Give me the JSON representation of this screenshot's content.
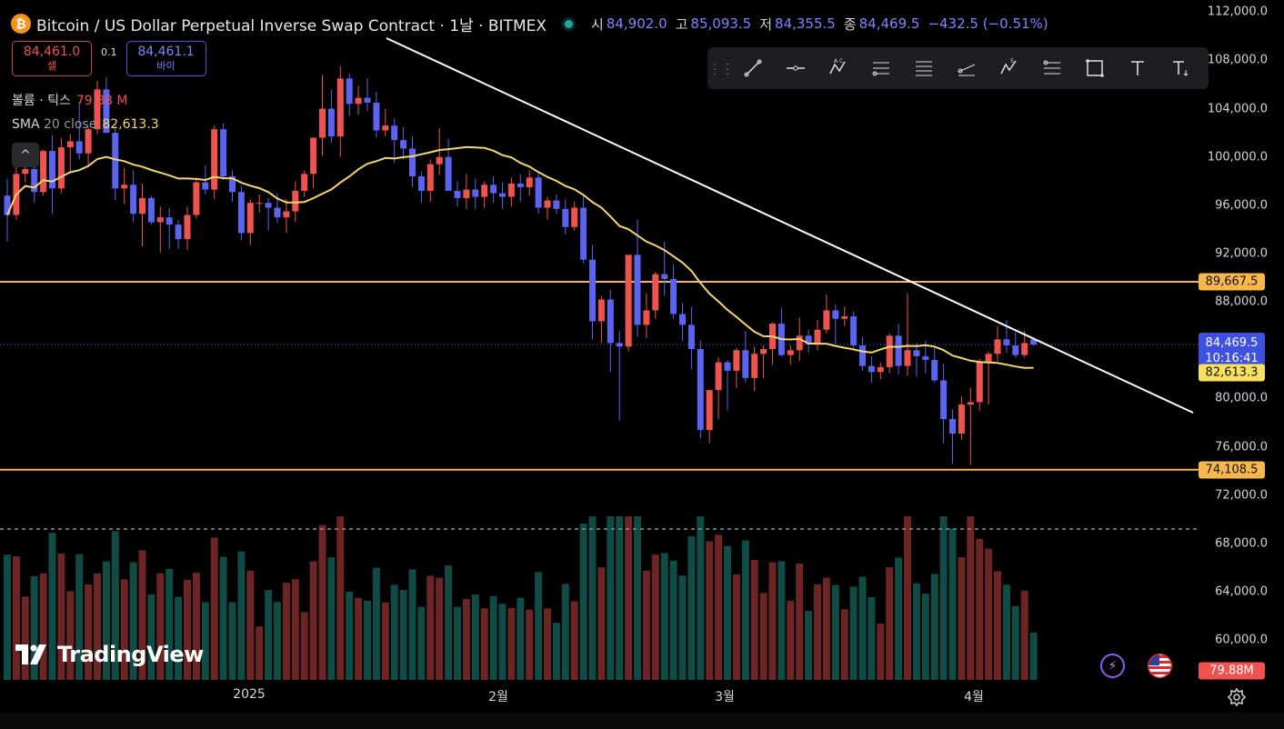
{
  "header": {
    "btc_icon_glyph": "₿",
    "title": "Bitcoin / US Dollar Perpetual Inverse Swap Contract · 1날 · BITMEX",
    "open_label": "시",
    "open": "84,902.0",
    "high_label": "고",
    "high": "85,093.5",
    "low_label": "저",
    "low": "84,355.5",
    "close_label": "종",
    "close": "84,469.5",
    "change": "−432.5 (−0.51%)"
  },
  "trade": {
    "sell_price": "84,461.0",
    "sell_label": "셀",
    "spread": "0.1",
    "buy_price": "84,461.1",
    "buy_label": "바이"
  },
  "legends": {
    "volume_label": "볼륨 · 틱스",
    "volume_value": "79.88 M",
    "sma_name": "SMA",
    "sma_params": "20 close",
    "sma_value": "82,613.3",
    "collapse_glyph": "^"
  },
  "price_axis": {
    "ticks": [
      "112,000.0",
      "108,000.0",
      "104,000.0",
      "100,000.0",
      "96,000.0",
      "92,000.0",
      "88,000.0",
      "80,000.0",
      "76,000.0",
      "72,000.0",
      "68,000.0",
      "64,000.0",
      "60,000.0"
    ],
    "tick_values": [
      112000,
      108000,
      104000,
      100000,
      96000,
      92000,
      88000,
      80000,
      76000,
      72000,
      68000,
      64000,
      60000
    ],
    "level_high": "89,667.5",
    "level_low": "74,108.5",
    "last_price": "84,469.5",
    "countdown": "10:16:41",
    "sma_tag": "82,613.3",
    "volume_tag": "79.88M"
  },
  "time_axis": {
    "labels": [
      "2025",
      "2월",
      "3월",
      "4월"
    ]
  },
  "watermark": {
    "brand": "TradingView"
  },
  "toolbar": {
    "tools": [
      "trend-line-icon",
      "horizontal-ray-icon",
      "abcd-pattern-icon",
      "fib-retracement-icon",
      "parallel-channel-icon",
      "regression-trend-icon",
      "elliott-wave-icon",
      "fib-extension-icon",
      "rectangle-icon",
      "text-icon",
      "anchored-text-icon"
    ]
  },
  "colors": {
    "bull": "#ef5350",
    "bear": "#5b63f0",
    "sma": "#f5d66d",
    "level": "#f7b74a",
    "trendline": "#ffffff"
  },
  "chart_data": {
    "type": "candlestick",
    "y_range": [
      56700,
      113000
    ],
    "levels": [
      89667.5,
      74108.5
    ],
    "last_price": 84469.5,
    "sma_period": 20,
    "candles_ohlc_approx": [
      [
        96800,
        98200,
        93000,
        95200
      ],
      [
        95200,
        99200,
        94800,
        98600
      ],
      [
        98600,
        100800,
        97900,
        99000
      ],
      [
        99000,
        99500,
        96200,
        97100
      ],
      [
        97100,
        100600,
        96800,
        100500
      ],
      [
        100500,
        101800,
        95300,
        97400
      ],
      [
        97400,
        101600,
        97000,
        100800
      ],
      [
        100800,
        101900,
        98700,
        101300
      ],
      [
        101300,
        104300,
        99800,
        100300
      ],
      [
        100300,
        102500,
        99200,
        102300
      ],
      [
        102300,
        106300,
        101900,
        105600
      ],
      [
        105600,
        106600,
        102100,
        102000
      ],
      [
        102000,
        102800,
        96400,
        97400
      ],
      [
        97400,
        99100,
        96100,
        97700
      ],
      [
        97700,
        98900,
        94600,
        95300
      ],
      [
        95300,
        97800,
        92600,
        96600
      ],
      [
        96600,
        96800,
        94400,
        94600
      ],
      [
        94600,
        95900,
        92100,
        95000
      ],
      [
        95000,
        95800,
        92400,
        94400
      ],
      [
        94400,
        94800,
        92400,
        93200
      ],
      [
        93200,
        95900,
        92300,
        95200
      ],
      [
        95200,
        98300,
        94900,
        97900
      ],
      [
        97900,
        99300,
        96900,
        97300
      ],
      [
        97300,
        102600,
        96500,
        102300
      ],
      [
        102300,
        102800,
        98100,
        98400
      ],
      [
        98400,
        98900,
        96300,
        97100
      ],
      [
        97100,
        97600,
        93100,
        93700
      ],
      [
        93700,
        96500,
        92700,
        96200
      ],
      [
        96200,
        96900,
        95400,
        96200
      ],
      [
        96200,
        96600,
        93900,
        95800
      ],
      [
        95800,
        97000,
        94500,
        95000
      ],
      [
        95000,
        96500,
        93700,
        95500
      ],
      [
        95500,
        98000,
        94600,
        97200
      ],
      [
        97200,
        98900,
        96700,
        98600
      ],
      [
        98600,
        101600,
        97400,
        101600
      ],
      [
        101600,
        106800,
        100100,
        104000
      ],
      [
        104000,
        105600,
        101200,
        101700
      ],
      [
        101700,
        107500,
        100000,
        106500
      ],
      [
        106500,
        106900,
        103400,
        104400
      ],
      [
        104400,
        105900,
        103500,
        104900
      ],
      [
        104900,
        106500,
        103800,
        104500
      ],
      [
        104500,
        105400,
        101600,
        102200
      ],
      [
        102200,
        104000,
        101700,
        102600
      ],
      [
        102600,
        103200,
        99500,
        101400
      ],
      [
        101400,
        102500,
        99800,
        100700
      ],
      [
        100700,
        101700,
        97500,
        98400
      ],
      [
        98400,
        98800,
        96200,
        97200
      ],
      [
        97200,
        99800,
        96300,
        99400
      ],
      [
        99400,
        102400,
        98500,
        100000
      ],
      [
        100000,
        101500,
        97600,
        97200
      ],
      [
        97200,
        98000,
        95900,
        96600
      ],
      [
        96600,
        98600,
        95700,
        97300
      ],
      [
        97300,
        98200,
        95700,
        96700
      ],
      [
        96700,
        98000,
        95800,
        97700
      ],
      [
        97700,
        98400,
        96200,
        97000
      ],
      [
        97000,
        97900,
        95700,
        96700
      ],
      [
        96700,
        98300,
        95900,
        97800
      ],
      [
        97800,
        98600,
        96300,
        97500
      ],
      [
        97500,
        98900,
        96800,
        98300
      ],
      [
        98300,
        98700,
        95300,
        95800
      ],
      [
        95800,
        96700,
        94800,
        96400
      ],
      [
        96400,
        96900,
        95300,
        95700
      ],
      [
        95700,
        96500,
        93600,
        94200
      ],
      [
        94200,
        96300,
        93900,
        95800
      ],
      [
        95800,
        96900,
        91200,
        91500
      ],
      [
        91500,
        92700,
        84900,
        86400
      ],
      [
        86400,
        88500,
        84600,
        88200
      ],
      [
        88200,
        89000,
        82200,
        84600
      ],
      [
        84600,
        85600,
        78200,
        84300
      ],
      [
        84300,
        90900,
        83900,
        91900
      ],
      [
        91900,
        94800,
        85100,
        86100
      ],
      [
        86100,
        88700,
        85000,
        87300
      ],
      [
        87300,
        90500,
        86600,
        90300
      ],
      [
        90300,
        93000,
        88500,
        89900
      ],
      [
        89900,
        91100,
        86600,
        87000
      ],
      [
        87000,
        87900,
        84800,
        86100
      ],
      [
        86100,
        87600,
        82400,
        84100
      ],
      [
        84100,
        84800,
        76700,
        77400
      ],
      [
        77400,
        80600,
        76300,
        80700
      ],
      [
        80700,
        83400,
        78300,
        83000
      ],
      [
        83000,
        83200,
        79000,
        82300
      ],
      [
        82300,
        84200,
        80900,
        84000
      ],
      [
        84000,
        85600,
        81300,
        81700
      ],
      [
        81700,
        84300,
        80600,
        83700
      ],
      [
        83700,
        84400,
        81700,
        84100
      ],
      [
        84100,
        86300,
        82800,
        86200
      ],
      [
        86200,
        87500,
        83500,
        83600
      ],
      [
        83600,
        84400,
        82800,
        84000
      ],
      [
        84000,
        86700,
        83100,
        85200
      ],
      [
        85200,
        85700,
        83800,
        84500
      ],
      [
        84500,
        86500,
        84000,
        85700
      ],
      [
        85700,
        88600,
        85400,
        87300
      ],
      [
        87300,
        87800,
        84500,
        86600
      ],
      [
        86600,
        87600,
        86000,
        86800
      ],
      [
        86800,
        87200,
        84200,
        84400
      ],
      [
        84400,
        85100,
        82300,
        82700
      ],
      [
        82700,
        83500,
        81300,
        82200
      ],
      [
        82200,
        83000,
        81600,
        82600
      ],
      [
        82600,
        85400,
        82100,
        85200
      ],
      [
        85200,
        86200,
        82000,
        82700
      ],
      [
        82700,
        88700,
        81900,
        84000
      ],
      [
        84000,
        84600,
        81800,
        83500
      ],
      [
        83500,
        84800,
        82100,
        83200
      ],
      [
        83200,
        84300,
        81300,
        81500
      ],
      [
        81500,
        82900,
        76300,
        78300
      ],
      [
        78300,
        79100,
        74600,
        77100
      ],
      [
        77100,
        80200,
        76600,
        79500
      ],
      [
        79500,
        80900,
        74500,
        79700
      ],
      [
        79700,
        83300,
        79000,
        83000
      ],
      [
        83000,
        83900,
        79500,
        83700
      ],
      [
        83700,
        86000,
        83100,
        84900
      ],
      [
        84900,
        86500,
        83800,
        84400
      ],
      [
        84400,
        85500,
        83400,
        83600
      ],
      [
        83600,
        85600,
        83400,
        84600
      ],
      [
        84902,
        85093.5,
        84355.5,
        84469.5
      ]
    ]
  }
}
